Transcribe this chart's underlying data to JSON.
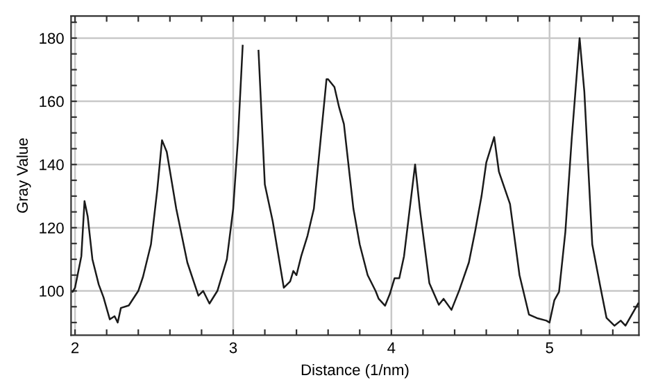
{
  "chart_data": {
    "type": "line",
    "xlabel": "Distance (1/nm)",
    "ylabel": "Gray Value",
    "color": "#1a1a1a",
    "grid": true,
    "marker": "none",
    "line_style": "solid",
    "xlim": [
      1.975,
      5.565
    ],
    "ylim": [
      86,
      187
    ],
    "xticks": [
      2,
      {
        "value": 2.2,
        "label": null
      },
      {
        "value": 2.4,
        "label": null
      },
      {
        "value": 2.6,
        "label": null
      },
      {
        "value": 2.8,
        "label": null
      },
      3,
      {
        "value": 3.2,
        "label": null
      },
      {
        "value": 3.4,
        "label": null
      },
      {
        "value": 3.6,
        "label": null
      },
      {
        "value": 3.8,
        "label": null
      },
      4,
      {
        "value": 4.2,
        "label": null
      },
      {
        "value": 4.4,
        "label": null
      },
      {
        "value": 4.6,
        "label": null
      },
      {
        "value": 4.8,
        "label": null
      },
      5,
      {
        "value": 5.2,
        "label": null
      },
      {
        "value": 5.4,
        "label": null
      }
    ],
    "yticks": [
      {
        "value": 90,
        "label": null
      },
      {
        "value": 95,
        "label": null
      },
      100,
      {
        "value": 105,
        "label": null
      },
      {
        "value": 110,
        "label": null
      },
      {
        "value": 115,
        "label": null
      },
      120,
      {
        "value": 125,
        "label": null
      },
      {
        "value": 130,
        "label": null
      },
      {
        "value": 135,
        "label": null
      },
      140,
      {
        "value": 145,
        "label": null
      },
      {
        "value": 150,
        "label": null
      },
      {
        "value": 155,
        "label": null
      },
      160,
      {
        "value": 165,
        "label": null
      },
      {
        "value": 170,
        "label": null
      },
      {
        "value": 175,
        "label": null
      },
      180,
      {
        "value": 185,
        "label": null
      }
    ],
    "x": [
      1.985,
      2.0,
      2.04,
      2.06,
      2.08,
      2.11,
      2.15,
      2.18,
      2.22,
      2.25,
      2.27,
      2.29,
      2.34,
      2.4,
      2.43,
      2.48,
      2.52,
      2.55,
      2.58,
      2.64,
      2.71,
      2.78,
      2.81,
      2.85,
      2.9,
      2.96,
      3.0,
      3.03,
      3.06,
      3.07,
      3.15,
      3.16,
      3.2,
      3.25,
      3.32,
      3.36,
      3.38,
      3.4,
      3.43,
      3.47,
      3.51,
      3.55,
      3.59,
      3.6,
      3.64,
      3.67,
      3.7,
      3.76,
      3.8,
      3.85,
      3.9,
      3.92,
      3.96,
      3.99,
      4.02,
      4.05,
      4.08,
      4.15,
      4.18,
      4.24,
      4.3,
      4.33,
      4.38,
      4.43,
      4.49,
      4.53,
      4.57,
      4.6,
      4.65,
      4.68,
      4.75,
      4.81,
      4.87,
      4.92,
      4.98,
      5.0,
      5.03,
      5.06,
      5.1,
      5.14,
      5.19,
      5.22,
      5.27,
      5.32,
      5.36,
      5.41,
      5.45,
      5.48,
      5.56
    ],
    "values": [
      99.7,
      101,
      111,
      128.4,
      123.6,
      110,
      102,
      98,
      91,
      92,
      90,
      94.6,
      95.4,
      100,
      104.5,
      114.7,
      132,
      147.7,
      144,
      126,
      109,
      98.5,
      100,
      96,
      100,
      110,
      126,
      148,
      177.6,
      null,
      null,
      176,
      133.7,
      122,
      101,
      103,
      106.3,
      105,
      111,
      117.5,
      126,
      146.5,
      167,
      167,
      164.5,
      158,
      152.8,
      126,
      114.7,
      105,
      100,
      97.5,
      95.3,
      99,
      104,
      104,
      111,
      140,
      126,
      102.5,
      95.6,
      97.5,
      94,
      100.3,
      109,
      119,
      130,
      140.6,
      148.7,
      137.7,
      127.5,
      105,
      92.5,
      91.4,
      90.6,
      90,
      97,
      99.7,
      118.7,
      148,
      180,
      163,
      114.7,
      101.6,
      91.5,
      89,
      90.6,
      89,
      96
    ]
  }
}
